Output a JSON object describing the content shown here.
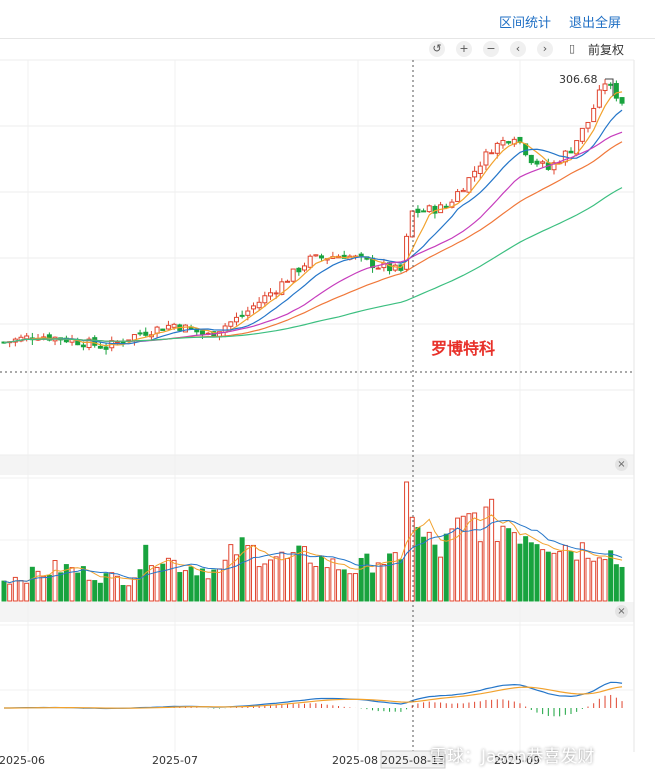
{
  "header": {
    "range_stats": "区间统计",
    "exit_fullscreen": "退出全屏"
  },
  "toolbar": {
    "undo_icon": "↺",
    "zoom_in_icon": "+",
    "zoom_out_icon": "−",
    "prev_icon": "‹",
    "next_icon": "›",
    "candle_icon": "▯",
    "adjust_label": "前复权"
  },
  "panel_close_icon": "×",
  "stock_name": "罗博特科",
  "peak_label": "306.68",
  "x_ticks": [
    "2025-06",
    "2025-07",
    "2025-08",
    "2025-08-13",
    "2025-09"
  ],
  "watermark": "雪球：Jason恭喜发财",
  "colors": {
    "up": "#e0452f",
    "down": "#18a33e",
    "ma5": "#f2a22d",
    "ma10": "#2576c9",
    "ma20": "#c63dbd",
    "ma30": "#f0783a",
    "ma60": "#3cbf80",
    "dif": "#2576c9",
    "dea": "#f2a22d",
    "link": "#1f6fc4",
    "stock_name": "#e8312a"
  },
  "chart_data": {
    "type": "candlestick",
    "price_anchors": [
      [
        0,
        92
      ],
      [
        6,
        95
      ],
      [
        12,
        93
      ],
      [
        18,
        90
      ],
      [
        24,
        96
      ],
      [
        30,
        100
      ],
      [
        36,
        95
      ],
      [
        42,
        104
      ],
      [
        48,
        118
      ],
      [
        54,
        135
      ],
      [
        60,
        138
      ],
      [
        66,
        131
      ],
      [
        70,
        128
      ],
      [
        72,
        168
      ],
      [
        78,
        172
      ],
      [
        82,
        196
      ],
      [
        86,
        226
      ],
      [
        90,
        240
      ],
      [
        93,
        215
      ],
      [
        96,
        205
      ],
      [
        100,
        225
      ],
      [
        103,
        255
      ],
      [
        106,
        306.68
      ],
      [
        109,
        280
      ]
    ],
    "peak_value": 306.68,
    "volume_anchors": [
      [
        0,
        18
      ],
      [
        5,
        22
      ],
      [
        10,
        28
      ],
      [
        14,
        24
      ],
      [
        18,
        20
      ],
      [
        22,
        18
      ],
      [
        26,
        42
      ],
      [
        30,
        32
      ],
      [
        34,
        28
      ],
      [
        38,
        24
      ],
      [
        41,
        44
      ],
      [
        46,
        40
      ],
      [
        50,
        34
      ],
      [
        54,
        38
      ],
      [
        58,
        30
      ],
      [
        62,
        26
      ],
      [
        66,
        36
      ],
      [
        70,
        30
      ],
      [
        71,
        100
      ],
      [
        73,
        55
      ],
      [
        77,
        42
      ],
      [
        80,
        58
      ],
      [
        83,
        70
      ],
      [
        86,
        66
      ],
      [
        90,
        62
      ],
      [
        94,
        56
      ],
      [
        98,
        48
      ],
      [
        102,
        44
      ],
      [
        106,
        46
      ],
      [
        109,
        28
      ]
    ]
  }
}
